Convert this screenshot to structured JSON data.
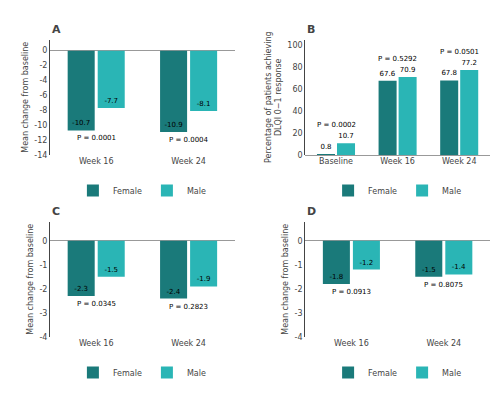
{
  "chart_data": [
    {
      "type": "bar",
      "title": "A",
      "categories": [
        "Week 16",
        "Week 24"
      ],
      "series": [
        {
          "name": "Female",
          "color": "#1a7a7a",
          "values": [
            -10.7,
            -10.9
          ]
        },
        {
          "name": "Male",
          "color": "#2ab5b5",
          "values": [
            -7.7,
            -8.1
          ]
        }
      ],
      "ylabel": "Mean change from baseline",
      "ylim": [
        -14,
        1.5
      ],
      "yticks": [
        0,
        -2,
        -4,
        -6,
        -8,
        -10,
        -12,
        -14
      ],
      "data_labels": true,
      "grid": false,
      "legend": "bottom",
      "annotations": [
        {
          "category": "Week 16",
          "text": "P = 0.0001"
        },
        {
          "category": "Week 24",
          "text": "P = 0.0004"
        }
      ]
    },
    {
      "type": "bar",
      "title": "B",
      "categories": [
        "Baseline",
        "Week 16",
        "Week 24"
      ],
      "series": [
        {
          "name": "Female",
          "color": "#1a7a7a",
          "values": [
            0.8,
            67.6,
            67.8
          ]
        },
        {
          "name": "Male",
          "color": "#2ab5b5",
          "values": [
            10.7,
            70.9,
            77.2
          ]
        }
      ],
      "ylabel": "Percentage of patients achieving\nDLQI 0−1 response",
      "ylim": [
        0,
        105
      ],
      "yticks": [
        0,
        20,
        40,
        60,
        80,
        100
      ],
      "data_labels": true,
      "grid": false,
      "legend": "bottom",
      "annotations": [
        {
          "category": "Baseline",
          "text": "P = 0.0002"
        },
        {
          "category": "Week 16",
          "text": "P = 0.5292"
        },
        {
          "category": "Week 24",
          "text": "P = 0.0501"
        }
      ]
    },
    {
      "type": "bar",
      "title": "C",
      "categories": [
        "Week 16",
        "Week 24"
      ],
      "series": [
        {
          "name": "Female",
          "color": "#1a7a7a",
          "values": [
            -2.3,
            -2.4
          ]
        },
        {
          "name": "Male",
          "color": "#2ab5b5",
          "values": [
            -1.5,
            -1.9
          ]
        }
      ],
      "ylabel": "Mean change from baseline",
      "ylim": [
        -4,
        0.8
      ],
      "yticks": [
        0,
        -1,
        -2,
        -3,
        -4
      ],
      "data_labels": true,
      "grid": false,
      "legend": "bottom",
      "annotations": [
        {
          "category": "Week 16",
          "text": "P = 0.0345"
        },
        {
          "category": "Week 24",
          "text": "P = 0.2823"
        }
      ]
    },
    {
      "type": "bar",
      "title": "D",
      "categories": [
        "Week 16",
        "Week 24"
      ],
      "series": [
        {
          "name": "Female",
          "color": "#1a7a7a",
          "values": [
            -1.8,
            -1.5
          ]
        },
        {
          "name": "Male",
          "color": "#2ab5b5",
          "values": [
            -1.2,
            -1.4
          ]
        }
      ],
      "ylabel": "Mean change from baseline",
      "ylim": [
        -4,
        0.8
      ],
      "yticks": [
        0,
        -1,
        -2,
        -3,
        -4
      ],
      "data_labels": true,
      "grid": false,
      "legend": "bottom",
      "annotations": [
        {
          "category": "Week 16",
          "text": "P = 0.0913"
        },
        {
          "category": "Week 24",
          "text": "P = 0.8075"
        }
      ]
    }
  ]
}
